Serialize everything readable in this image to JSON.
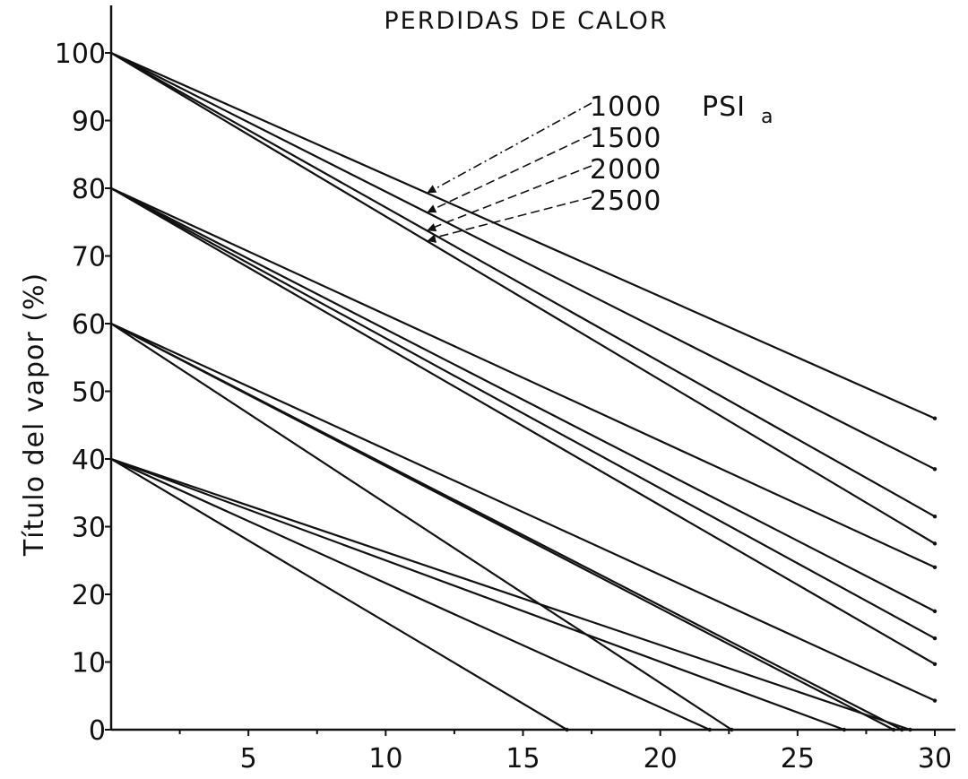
{
  "chart_data": {
    "type": "line",
    "title": "PERDIDAS DE CALOR",
    "xlabel": "",
    "ylabel": "Título del vapor (%)",
    "xlim": [
      0,
      30
    ],
    "ylim": [
      0,
      100
    ],
    "x_ticks": [
      "5",
      "10",
      "15",
      "20",
      "25",
      "30"
    ],
    "y_ticks": [
      "0",
      "10",
      "20",
      "30",
      "40",
      "50",
      "60",
      "70",
      "80",
      "90",
      "100"
    ],
    "grid": false,
    "legend": {
      "placement": "top-right",
      "entries": [
        "1000",
        "1500",
        "2000",
        "2500"
      ],
      "unit": "PSI",
      "unit_subscript": "a"
    },
    "series": [
      {
        "name": "1000",
        "groups": [
          {
            "points": [
              [
                0,
                100
              ],
              [
                30,
                46
              ]
            ]
          },
          {
            "points": [
              [
                0,
                80
              ],
              [
                30,
                17.5
              ]
            ]
          },
          {
            "points": [
              [
                0,
                60
              ],
              [
                30,
                4.3
              ]
            ]
          },
          {
            "points": [
              [
                0,
                40
              ],
              [
                29.1,
                0
              ]
            ]
          }
        ]
      },
      {
        "name": "1500",
        "groups": [
          {
            "points": [
              [
                0,
                100
              ],
              [
                30,
                38.5
              ]
            ]
          },
          {
            "points": [
              [
                0,
                80
              ],
              [
                30,
                13.5
              ]
            ]
          },
          {
            "points": [
              [
                0,
                60
              ],
              [
                28.8,
                0
              ]
            ]
          },
          {
            "points": [
              [
                0,
                40
              ],
              [
                26.7,
                0
              ]
            ]
          }
        ]
      },
      {
        "name": "2000",
        "groups": [
          {
            "points": [
              [
                0,
                100
              ],
              [
                30,
                31.5
              ]
            ]
          },
          {
            "points": [
              [
                0,
                80
              ],
              [
                30,
                9.7
              ]
            ]
          },
          {
            "points": [
              [
                0,
                60
              ],
              [
                28.5,
                0
              ]
            ]
          },
          {
            "points": [
              [
                0,
                40
              ],
              [
                21.8,
                0
              ]
            ]
          }
        ]
      },
      {
        "name": "2500",
        "groups": [
          {
            "points": [
              [
                0,
                100
              ],
              [
                30,
                27.5
              ]
            ]
          },
          {
            "points": [
              [
                0,
                80
              ],
              [
                30,
                24
              ]
            ]
          },
          {
            "points": [
              [
                0,
                60
              ],
              [
                22.6,
                0
              ]
            ]
          },
          {
            "points": [
              [
                0,
                40
              ],
              [
                16.6,
                0
              ]
            ]
          }
        ]
      }
    ]
  }
}
